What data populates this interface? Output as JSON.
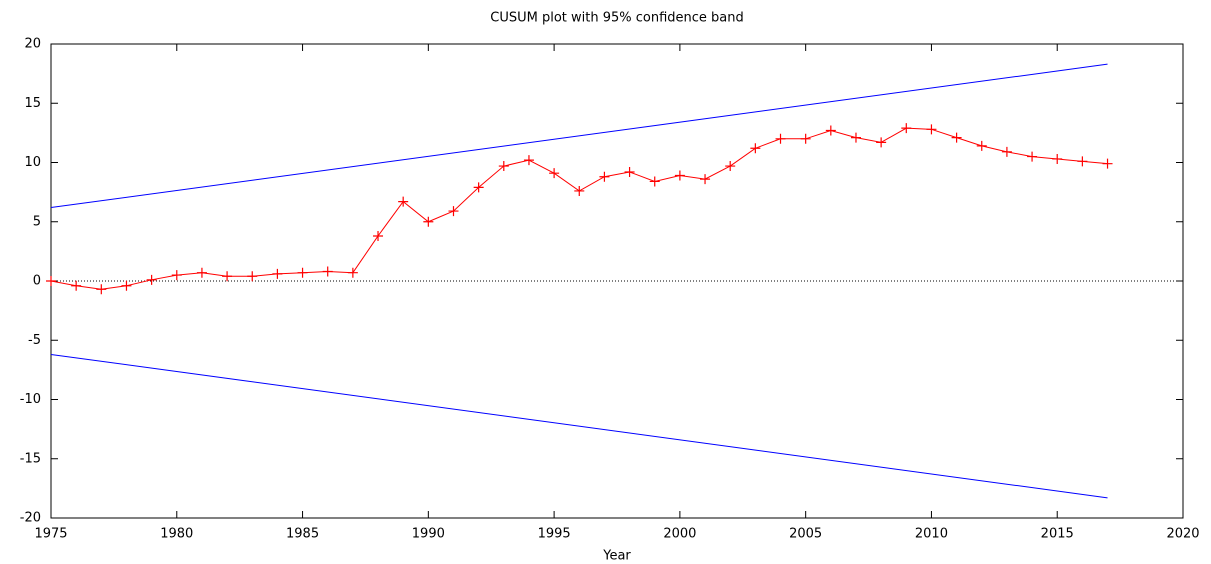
{
  "chart_data": {
    "type": "line",
    "title": "CUSUM plot with 95% confidence band",
    "x_label": "Year",
    "xlim": [
      1975,
      2020
    ],
    "xticks": [
      1975,
      1980,
      1985,
      1990,
      1995,
      2000,
      2005,
      2010,
      2015,
      2020
    ],
    "ylim": [
      -20,
      20
    ],
    "yticks": [
      -20,
      -15,
      -10,
      -5,
      0,
      5,
      10,
      15,
      20
    ],
    "zero_line": {
      "y": 0,
      "color": "#000000",
      "style": "dotted"
    },
    "series": [
      {
        "color": "#ff0000",
        "marker": "+",
        "x": [
          1975,
          1976,
          1977,
          1978,
          1979,
          1980,
          1981,
          1982,
          1983,
          1984,
          1985,
          1986,
          1987,
          1988,
          1989,
          1990,
          1991,
          1992,
          1993,
          1994,
          1995,
          1996,
          1997,
          1998,
          1999,
          2000,
          2001,
          2002,
          2003,
          2004,
          2005,
          2006,
          2007,
          2008,
          2009,
          2010,
          2011,
          2012,
          2013,
          2014,
          2015,
          2016,
          2017
        ],
        "values": [
          0,
          -0.4,
          -0.7,
          -0.4,
          0.1,
          0.5,
          0.7,
          0.4,
          0.4,
          0.6,
          0.7,
          0.8,
          0.7,
          3.8,
          6.7,
          5.0,
          5.9,
          7.9,
          9.7,
          10.2,
          9.1,
          7.6,
          8.8,
          9.2,
          8.4,
          8.9,
          8.6,
          9.7,
          11.2,
          12.0,
          12.0,
          12.7,
          12.1,
          11.7,
          12.9,
          12.8,
          12.1,
          11.4,
          10.9,
          10.5,
          10.3,
          10.1,
          9.9
        ]
      },
      {
        "color": "#0000ff",
        "x": [
          1975,
          2017
        ],
        "values": [
          6.2,
          18.3
        ]
      },
      {
        "color": "#0000ff",
        "x": [
          1975,
          2017
        ],
        "values": [
          -6.2,
          -18.3
        ]
      }
    ]
  }
}
